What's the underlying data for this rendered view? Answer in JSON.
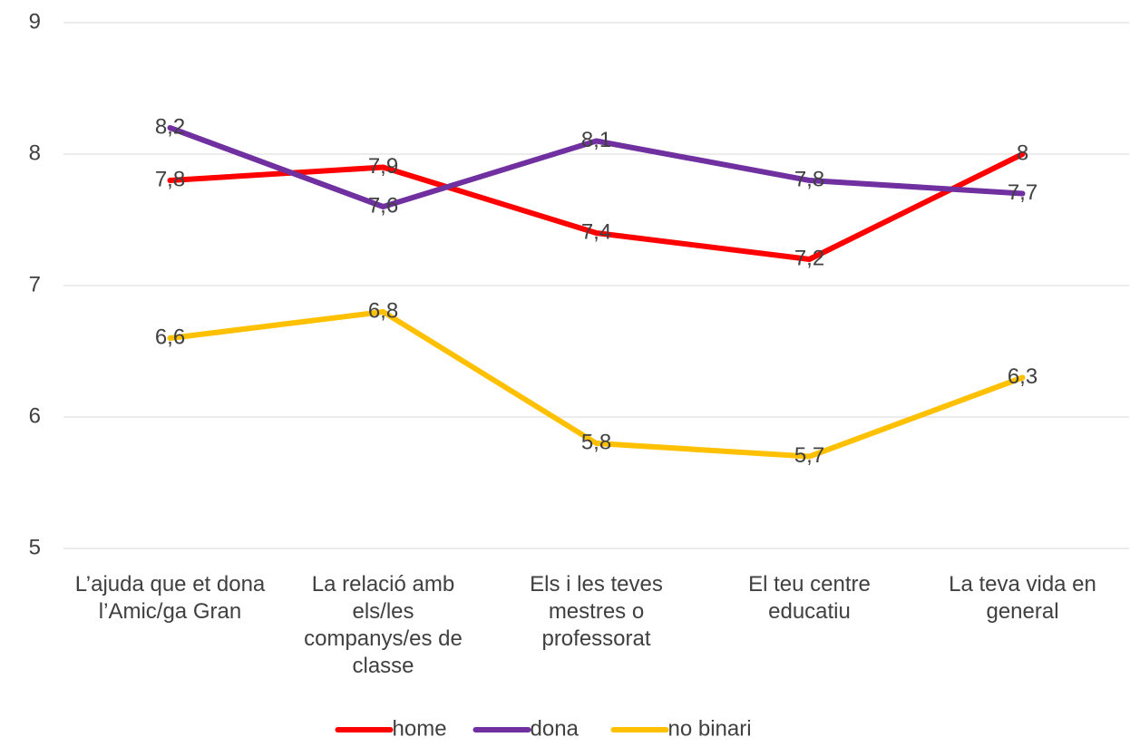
{
  "chart_data": {
    "type": "line",
    "categories": [
      "L’ajuda que et dona l’Amic/ga Gran",
      "La relació amb els/les companys/es de classe",
      "Els i les teves mestres o professorat",
      "El teu centre educatiu",
      "La teva vida en general"
    ],
    "series": [
      {
        "name": "home",
        "color": "#ff0000",
        "values": [
          7.8,
          7.9,
          7.4,
          7.2,
          8
        ],
        "value_labels": [
          "7,8",
          "7,9",
          "7,4",
          "7,2",
          "8"
        ]
      },
      {
        "name": "dona",
        "color": "#7030a0",
        "values": [
          8.2,
          7.6,
          8.1,
          7.8,
          7.7
        ],
        "value_labels": [
          "8,2",
          "7,6",
          "8,1",
          "7,8",
          "7,7"
        ]
      },
      {
        "name": "no binari",
        "color": "#ffc000",
        "values": [
          6.6,
          6.8,
          5.8,
          5.7,
          6.3
        ],
        "value_labels": [
          "6,6",
          "6,8",
          "5,8",
          "5,7",
          "6,3"
        ]
      }
    ],
    "ylim": [
      5,
      9
    ],
    "yticks": [
      5,
      6,
      7,
      8,
      9
    ],
    "grid": true,
    "legend": "bottom"
  }
}
